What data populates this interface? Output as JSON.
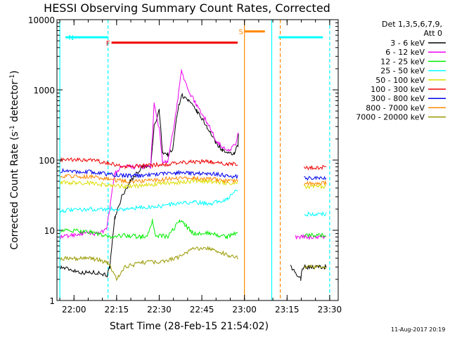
{
  "chart_data": {
    "type": "line",
    "title": "HESSI Observing Summary Count Rates, Corrected",
    "xlabel": "Start Time (28-Feb-15 21:54:02)",
    "ylabel_main": "Corrected Count Rate (s",
    "ylabel_sup1": "-1",
    "ylabel_mid": " detector",
    "ylabel_sup2": "-1",
    "ylabel_end": ")",
    "y_scale": "log",
    "ylim": [
      1,
      10000
    ],
    "xlim": [
      "21:54",
      "23:33"
    ],
    "x_ticks": [
      "22:00",
      "22:15",
      "22:30",
      "22:45",
      "23:00",
      "23:15",
      "23:30"
    ],
    "y_ticks": [
      {
        "value": 10000,
        "label": "10000"
      },
      {
        "value": 1000,
        "label": "1000"
      },
      {
        "value": 100,
        "label": "100"
      },
      {
        "value": 10,
        "label": "10"
      },
      {
        "value": 1,
        "label": "1"
      }
    ],
    "timestamp": "11-Aug-2017 20:19",
    "legend": {
      "header1": "Det 1,3,5,6,7,9,",
      "header2": "Att 0",
      "placement": "right",
      "entries": [
        {
          "label": "3 - 6 keV",
          "color": "#000000"
        },
        {
          "label": "6 - 12 keV",
          "color": "#ee00ee"
        },
        {
          "label": "12 - 25 keV",
          "color": "#00ee00"
        },
        {
          "label": "25 - 50 keV",
          "color": "#00ffff"
        },
        {
          "label": "50 - 100 keV",
          "color": "#dddd00"
        },
        {
          "label": "100 - 300 keV",
          "color": "#ee0000"
        },
        {
          "label": "300 - 800 keV",
          "color": "#0000ee"
        },
        {
          "label": "800 - 7000 keV",
          "color": "#ff8800"
        },
        {
          "label": "7000 - 20000 keV",
          "color": "#999900"
        }
      ]
    },
    "flags": [
      {
        "label": "N",
        "color": "#00ffff",
        "segments": [
          [
            21.95,
            22.2
          ],
          [
            23.2,
            23.46
          ]
        ],
        "y": 5600
      },
      {
        "label": "F",
        "color": "#ee0000",
        "segments": [
          [
            22.22,
            22.96
          ]
        ],
        "y": 4700
      },
      {
        "label": "S",
        "color": "#ff8800",
        "segments": [
          [
            23.0,
            23.12
          ]
        ],
        "y": 6800
      }
    ],
    "markers": [
      {
        "time": 21.917,
        "color": "#00ffff",
        "style": "solid"
      },
      {
        "time": 22.2,
        "color": "#00ffff",
        "style": "dashed"
      },
      {
        "time": 23.0,
        "color": "#ff8800",
        "style": "solid"
      },
      {
        "time": 23.16,
        "color": "#00ffff",
        "style": "solid"
      },
      {
        "time": 23.21,
        "color": "#ff8800",
        "style": "dashed"
      },
      {
        "time": 23.5,
        "color": "#00ffff",
        "style": "dashed"
      }
    ],
    "series": [
      {
        "name": "3 - 6 keV",
        "color": "#000000",
        "x": [
          21.92,
          22.05,
          22.14,
          22.195,
          22.21,
          22.24,
          22.28,
          22.33,
          22.4,
          22.45,
          22.47,
          22.5,
          22.52,
          22.55,
          22.58,
          22.6,
          22.63,
          22.67,
          22.72,
          22.78,
          22.83,
          22.87,
          22.91,
          22.94,
          22.962,
          22.965,
          23.21,
          23.27,
          23.33,
          23.34,
          23.48
        ],
        "y": [
          3,
          2.5,
          2.5,
          2.3,
          3,
          15,
          30,
          50,
          80,
          80,
          300,
          500,
          130,
          120,
          140,
          400,
          850,
          700,
          500,
          300,
          180,
          140,
          120,
          125,
          160,
          230,
          null,
          3,
          2,
          3,
          3
        ]
      },
      {
        "name": "6 - 12 keV",
        "color": "#ee00ee",
        "x": [
          21.92,
          22.05,
          22.14,
          22.19,
          22.24,
          22.28,
          22.33,
          22.4,
          22.45,
          22.47,
          22.5,
          22.52,
          22.55,
          22.6,
          22.63,
          22.67,
          22.72,
          22.78,
          22.83,
          22.87,
          22.91,
          22.95,
          22.965,
          23.21,
          23.3,
          23.48
        ],
        "y": [
          8,
          9,
          9,
          10,
          65,
          80,
          80,
          80,
          80,
          620,
          280,
          95,
          90,
          500,
          1850,
          1000,
          600,
          350,
          200,
          150,
          140,
          170,
          250,
          null,
          8,
          8
        ]
      },
      {
        "name": "12 - 25 keV",
        "color": "#00ee00",
        "x": [
          21.92,
          22.1,
          22.2,
          22.3,
          22.4,
          22.44,
          22.46,
          22.48,
          22.5,
          22.55,
          22.58,
          22.62,
          22.65,
          22.7,
          22.8,
          22.9,
          22.96,
          23.21,
          23.35,
          23.48
        ],
        "y": [
          10,
          9.5,
          8,
          8.5,
          8,
          9,
          14,
          8,
          8.5,
          8,
          10,
          14,
          12,
          9,
          9,
          8,
          9.5,
          null,
          8.5,
          8.5
        ]
      },
      {
        "name": "25 - 50 keV",
        "color": "#00ffff",
        "x": [
          21.92,
          22.1,
          22.2,
          22.3,
          22.4,
          22.5,
          22.6,
          22.7,
          22.8,
          22.9,
          22.96,
          23.21,
          23.35,
          23.48
        ],
        "y": [
          19,
          20,
          20,
          20,
          21,
          22,
          24,
          25,
          24,
          28,
          38,
          null,
          17,
          17
        ]
      },
      {
        "name": "50 - 100 keV",
        "color": "#dddd00",
        "x": [
          21.92,
          22.1,
          22.2,
          22.3,
          22.4,
          22.5,
          22.6,
          22.7,
          22.8,
          22.9,
          22.96,
          23.21,
          23.35,
          23.48
        ],
        "y": [
          48,
          47,
          44,
          42,
          43,
          46,
          48,
          50,
          50,
          47,
          48,
          null,
          42,
          42
        ]
      },
      {
        "name": "100 - 300 keV",
        "color": "#ee0000",
        "x": [
          21.92,
          22.1,
          22.2,
          22.3,
          22.4,
          22.5,
          22.6,
          22.7,
          22.8,
          22.9,
          22.96,
          23.21,
          23.35,
          23.48
        ],
        "y": [
          100,
          100,
          90,
          80,
          82,
          86,
          90,
          95,
          95,
          88,
          88,
          null,
          78,
          80
        ]
      },
      {
        "name": "300 - 800 keV",
        "color": "#0000ee",
        "x": [
          21.92,
          22.1,
          22.2,
          22.3,
          22.4,
          22.5,
          22.6,
          22.7,
          22.8,
          22.9,
          22.96,
          23.21,
          23.35,
          23.48
        ],
        "y": [
          70,
          68,
          63,
          60,
          60,
          64,
          66,
          65,
          65,
          60,
          58,
          null,
          55,
          55
        ]
      },
      {
        "name": "800 - 7000 keV",
        "color": "#ff8800",
        "x": [
          21.92,
          22.1,
          22.2,
          22.3,
          22.4,
          22.5,
          22.6,
          22.7,
          22.8,
          22.9,
          22.96,
          23.21,
          23.35,
          23.48
        ],
        "y": [
          60,
          58,
          54,
          50,
          50,
          53,
          55,
          56,
          55,
          50,
          50,
          null,
          47,
          47
        ]
      },
      {
        "name": "7000 - 20000 keV",
        "color": "#999900",
        "x": [
          21.92,
          22.1,
          22.2,
          22.25,
          22.3,
          22.4,
          22.5,
          22.6,
          22.7,
          22.8,
          22.9,
          22.96,
          23.21,
          23.35,
          23.48
        ],
        "y": [
          4,
          4,
          3.5,
          2,
          3,
          3.5,
          3.5,
          4,
          5.5,
          5.5,
          4.5,
          4,
          null,
          3,
          3
        ]
      }
    ]
  }
}
